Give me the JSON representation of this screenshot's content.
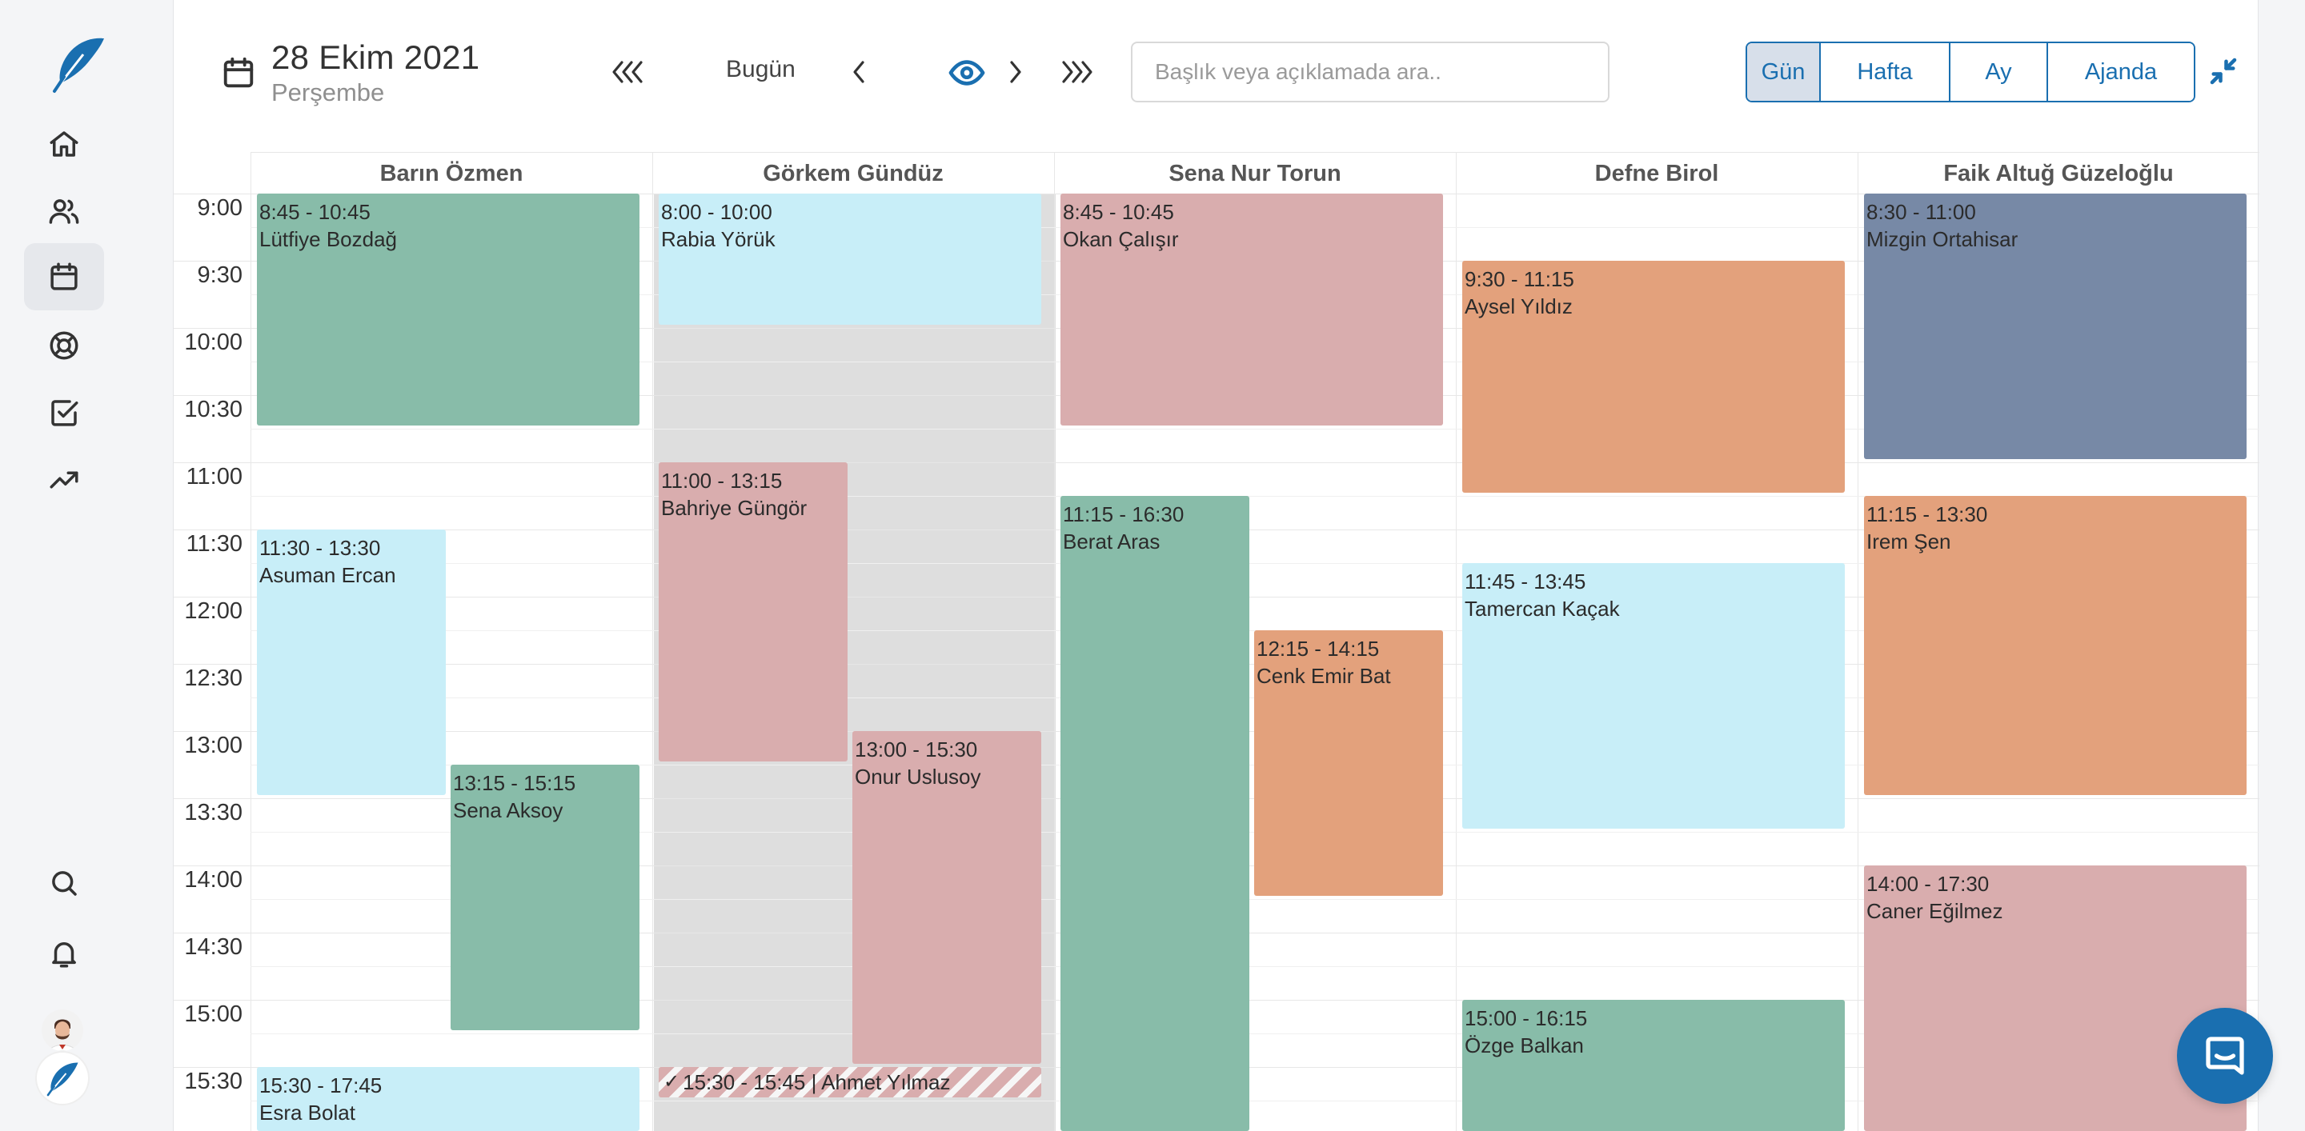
{
  "app": {
    "logo_icon": "feather-logo-icon",
    "brand_color": "#1a6fb0"
  },
  "sidebar": {
    "items": [
      {
        "icon": "home-icon"
      },
      {
        "icon": "users-icon"
      },
      {
        "icon": "calendar-icon",
        "active": true
      },
      {
        "icon": "lifebuoy-icon"
      },
      {
        "icon": "checkbox-icon"
      },
      {
        "icon": "trending-up-icon"
      }
    ],
    "bottom_items": [
      {
        "icon": "search-icon"
      },
      {
        "icon": "bell-icon"
      }
    ]
  },
  "header": {
    "date": "28 Ekim 2021",
    "weekday": "Perşembe",
    "today_label": "Bugün",
    "search_placeholder": "Başlık veya açıklamada ara..",
    "views": [
      "Gün",
      "Hafta",
      "Ay",
      "Ajanda"
    ],
    "active_view": "Gün"
  },
  "calendar": {
    "time_slots": [
      "9:00",
      "9:30",
      "10:00",
      "10:30",
      "11:00",
      "11:30",
      "12:00",
      "12:30",
      "13:00",
      "13:30",
      "14:00",
      "14:30",
      "15:00",
      "15:30"
    ],
    "columns": [
      {
        "name": "Barın Özmen",
        "events": [
          {
            "time": "8:45 - 10:45",
            "name": "Lütfiye Bozdağ",
            "color": "#88bca9"
          },
          {
            "time": "11:30 - 13:30",
            "name": "Asuman Ercan",
            "color": "#c8eef8"
          },
          {
            "time": "13:15 - 15:15",
            "name": "Sena Aksoy",
            "color": "#88bca9"
          },
          {
            "time": "15:30 - 17:45",
            "name": "Esra Bolat",
            "color": "#c8eef8"
          }
        ]
      },
      {
        "name": "Görkem Gündüz",
        "events": [
          {
            "time": "8:00 - 10:00",
            "name": "Rabia Yörük",
            "color": "#c8eef8"
          },
          {
            "time": "11:00 - 13:15",
            "name": "Bahriye Güngör",
            "color": "#d9adae"
          },
          {
            "time": "13:00 - 15:30",
            "name": "Onur Uslusoy",
            "color": "#d9adae"
          },
          {
            "time": "15:30 - 15:45 | Ahmet Yılmaz",
            "name": "",
            "color": "#d9adae",
            "striped": true
          }
        ]
      },
      {
        "name": "Sena Nur Torun",
        "events": [
          {
            "time": "8:45 - 10:45",
            "name": "Okan Çalışır",
            "color": "#d9adae"
          },
          {
            "time": "11:15 - 16:30",
            "name": "Berat Aras",
            "color": "#88bca9"
          },
          {
            "time": "12:15 - 14:15",
            "name": "Cenk Emir Bat",
            "color": "#e3a17c"
          }
        ]
      },
      {
        "name": "Defne Birol",
        "events": [
          {
            "time": "9:30 - 11:15",
            "name": "Aysel Yıldız",
            "color": "#e3a17c"
          },
          {
            "time": "11:45 - 13:45",
            "name": "Tamercan Kaçak",
            "color": "#c8eef8"
          },
          {
            "time": "15:00 - 16:15",
            "name": "Özge Balkan",
            "color": "#88bca9"
          }
        ]
      },
      {
        "name": "Faik Altuğ Güzeloğlu",
        "events": [
          {
            "time": "8:30 - 11:00",
            "name": "Mizgin Ortahisar",
            "color": "#7789a6"
          },
          {
            "time": "11:15 - 13:30",
            "name": "Irem Şen",
            "color": "#e3a17c"
          },
          {
            "time": "14:00 - 17:30",
            "name": "Caner Eğilmez",
            "color": "#d9adae"
          }
        ]
      }
    ]
  },
  "chat": {
    "icon": "chat-icon"
  }
}
